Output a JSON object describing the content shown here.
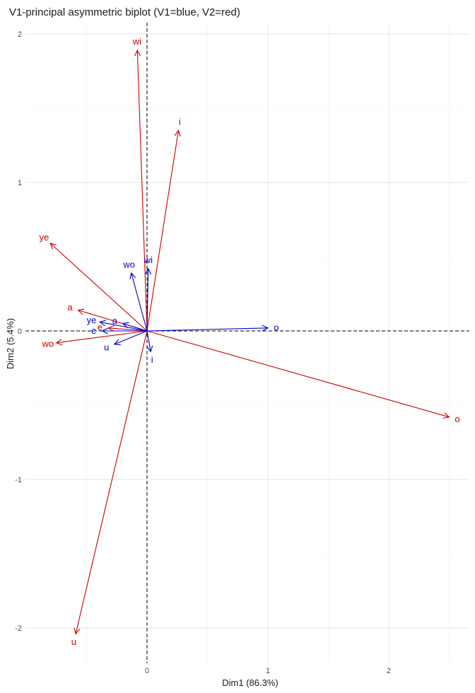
{
  "chart_data": {
    "type": "scatter",
    "title": "V1-principal asymmetric biplot  (V1=blue, V2=red)",
    "xlabel": "Dim1 (86.3%)",
    "ylabel": "Dim2 (5.4%)",
    "xlim": [
      -0.6,
      2.6
    ],
    "ylim": [
      -2.1,
      2.05
    ],
    "x_ticks": [
      0,
      1,
      2
    ],
    "y_ticks": [
      -2,
      -1,
      0,
      1,
      2
    ],
    "grid": true,
    "zero_lines": "dashed",
    "colors": {
      "V1": "#0000cc",
      "V2": "#cc0000"
    },
    "series": [
      {
        "name": "V1",
        "color": "#0000cc",
        "points": [
          {
            "label": "o",
            "x": 1.0,
            "y": 0.02
          },
          {
            "label": "wo",
            "x": -0.13,
            "y": 0.39
          },
          {
            "label": "wi",
            "x": 0.01,
            "y": 0.42
          },
          {
            "label": "ye",
            "x": -0.39,
            "y": 0.06
          },
          {
            "label": "a",
            "x": -0.2,
            "y": 0.05
          },
          {
            "label": "e",
            "x": -0.37,
            "y": 0.0
          },
          {
            "label": "u",
            "x": -0.27,
            "y": -0.09
          },
          {
            "label": "i",
            "x": 0.03,
            "y": -0.14
          }
        ]
      },
      {
        "name": "V2",
        "color": "#cc0000",
        "points": [
          {
            "label": "wi",
            "x": -0.08,
            "y": 1.89
          },
          {
            "label": "i",
            "x": 0.26,
            "y": 1.35
          },
          {
            "label": "ye",
            "x": -0.8,
            "y": 0.59
          },
          {
            "label": "a",
            "x": -0.57,
            "y": 0.14
          },
          {
            "label": "wo",
            "x": -0.75,
            "y": -0.08
          },
          {
            "label": "e",
            "x": -0.32,
            "y": 0.02
          },
          {
            "label": "o",
            "x": 2.5,
            "y": -0.58
          },
          {
            "label": "u",
            "x": -0.59,
            "y": -2.04
          }
        ]
      }
    ]
  }
}
